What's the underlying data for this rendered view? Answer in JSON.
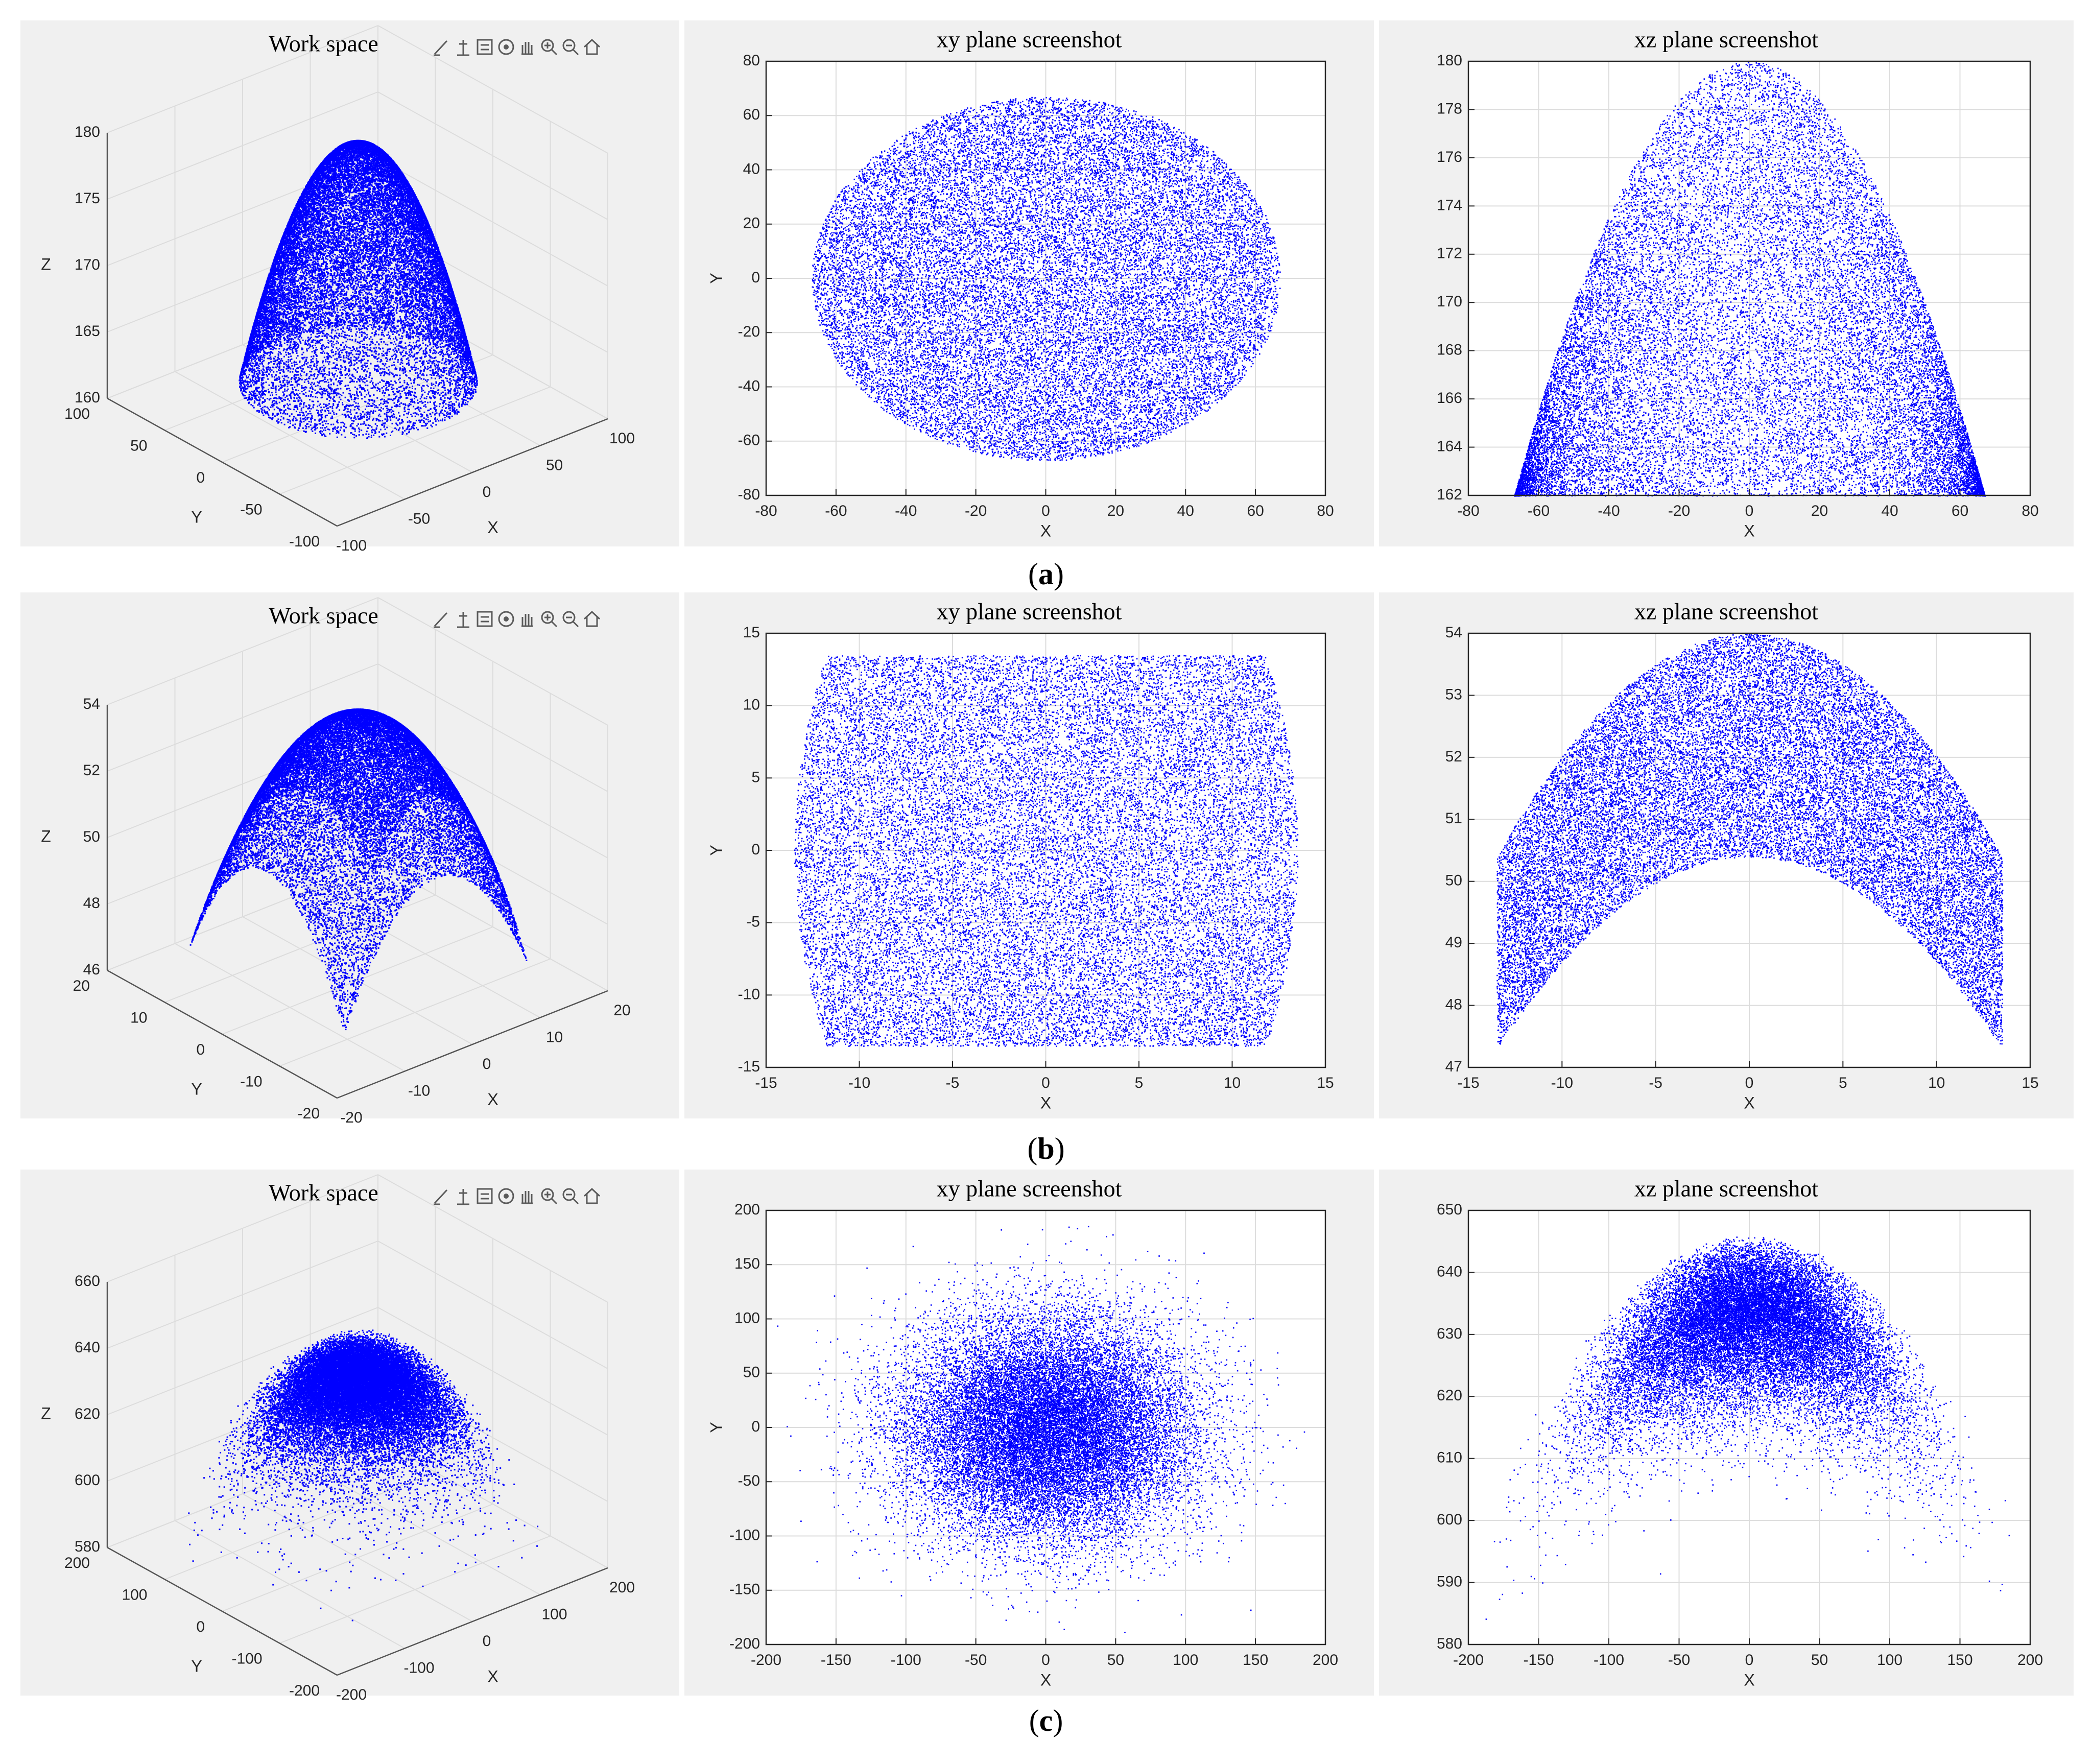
{
  "figure": {
    "rows": [
      {
        "caption_letter": "a",
        "panels": [
          {
            "title": "Work space"
          },
          {
            "title": "xy plane screenshot"
          },
          {
            "title": "xz plane screenshot"
          }
        ]
      },
      {
        "caption_letter": "b",
        "panels": [
          {
            "title": "Work space"
          },
          {
            "title": "xy plane screenshot"
          },
          {
            "title": "xz plane screenshot"
          }
        ]
      },
      {
        "caption_letter": "c",
        "panels": [
          {
            "title": "Work space"
          },
          {
            "title": "xy plane screenshot"
          },
          {
            "title": "xz plane screenshot"
          }
        ]
      }
    ],
    "toolbar_icons": [
      "brush-icon",
      "data-cursor-icon",
      "legend-icon",
      "rotate-icon",
      "pan-hand-icon",
      "zoom-in-icon",
      "zoom-out-icon",
      "home-icon"
    ],
    "colors": {
      "points": "#0000ff",
      "grid": "#dcdcdc",
      "axis": "#262626",
      "figure_bg": "#f0f0f0",
      "axes_bg": "#ffffff"
    }
  },
  "chart_data": [
    {
      "type": "scatter",
      "panel": "a-workspace",
      "title": "Work space",
      "view": "3d",
      "xlabel": "X",
      "ylabel": "Y",
      "zlabel": "Z",
      "xlim": [
        -100,
        100
      ],
      "ylim": [
        -100,
        100
      ],
      "zlim": [
        160,
        180
      ],
      "xticks": [
        -100,
        -50,
        0,
        50,
        100
      ],
      "yticks": [
        -100,
        -50,
        0,
        50,
        100
      ],
      "zticks": [
        160,
        165,
        170,
        175,
        180
      ],
      "shape": "paraboloid cap",
      "z_peak": 180,
      "z_base": 162,
      "base_radius": 67,
      "grid": true
    },
    {
      "type": "scatter",
      "panel": "a-xy",
      "title": "xy plane screenshot",
      "xlabel": "X",
      "ylabel": "Y",
      "xlim": [
        -80,
        80
      ],
      "ylim": [
        -80,
        80
      ],
      "xticks": [
        -80,
        -60,
        -40,
        -20,
        0,
        20,
        40,
        60,
        80
      ],
      "yticks": [
        -80,
        -60,
        -40,
        -20,
        0,
        20,
        40,
        60,
        80
      ],
      "shape": "disk",
      "radius": 67,
      "grid": true
    },
    {
      "type": "scatter",
      "panel": "a-xz",
      "title": "xz plane screenshot",
      "xlabel": "X",
      "ylabel": "",
      "xlim": [
        -80,
        80
      ],
      "ylim": [
        162,
        180
      ],
      "xticks": [
        -80,
        -60,
        -40,
        -20,
        0,
        20,
        40,
        60,
        80
      ],
      "yticks": [
        162,
        164,
        166,
        168,
        170,
        172,
        174,
        176,
        178,
        180
      ],
      "shape": "parabola region",
      "z_peak": 180,
      "z_at_edge": 162,
      "edge_x": 67,
      "grid": true
    },
    {
      "type": "scatter",
      "panel": "b-workspace",
      "title": "Work space",
      "view": "3d",
      "xlabel": "X",
      "ylabel": "Y",
      "zlabel": "Z",
      "xlim": [
        -20,
        20
      ],
      "ylim": [
        -20,
        20
      ],
      "zlim": [
        46,
        54
      ],
      "xticks": [
        -20,
        -10,
        0,
        10,
        20
      ],
      "yticks": [
        -20,
        -10,
        0,
        10,
        20
      ],
      "zticks": [
        46,
        48,
        50,
        52,
        54
      ],
      "shape": "saddle dome",
      "z_peak": 54,
      "grid": true
    },
    {
      "type": "scatter",
      "panel": "b-xy",
      "title": "xy plane screenshot",
      "xlabel": "X",
      "ylabel": "Y",
      "xlim": [
        -15,
        15
      ],
      "ylim": [
        -15,
        15
      ],
      "xticks": [
        -15,
        -10,
        -5,
        0,
        5,
        10,
        15
      ],
      "yticks": [
        -15,
        -10,
        -5,
        0,
        5,
        10,
        15
      ],
      "shape": "barrel rectangle",
      "x_half_width_mid": 13.5,
      "x_half_width_edge": 11.8,
      "y_half_height": 13.5,
      "grid": true
    },
    {
      "type": "scatter",
      "panel": "b-xz",
      "title": "xz plane screenshot",
      "xlabel": "X",
      "ylabel": "",
      "xlim": [
        -15,
        15
      ],
      "ylim": [
        47,
        54
      ],
      "xticks": [
        -15,
        -10,
        -5,
        0,
        5,
        10,
        15
      ],
      "yticks": [
        47,
        48,
        49,
        50,
        51,
        52,
        53,
        54
      ],
      "shape": "crescent band",
      "top_peak": 54,
      "top_edge": 50.4,
      "bottom_peak": 50.4,
      "bottom_edge": 47.3,
      "edge_x": 13.5,
      "grid": true
    },
    {
      "type": "scatter",
      "panel": "c-workspace",
      "title": "Work space",
      "view": "3d",
      "xlabel": "X",
      "ylabel": "Y",
      "zlabel": "Z",
      "xlim": [
        -200,
        200
      ],
      "ylim": [
        -200,
        200
      ],
      "zlim": [
        580,
        660
      ],
      "xticks": [
        -200,
        -100,
        0,
        100,
        200
      ],
      "yticks": [
        -200,
        -100,
        0,
        100,
        200
      ],
      "zticks": [
        580,
        600,
        620,
        640,
        660
      ],
      "shape": "gaussian cloud dome",
      "grid": true
    },
    {
      "type": "scatter",
      "panel": "c-xy",
      "title": "xy plane screenshot",
      "xlabel": "X",
      "ylabel": "Y",
      "xlim": [
        -200,
        200
      ],
      "ylim": [
        -200,
        200
      ],
      "xticks": [
        -200,
        -150,
        -100,
        -50,
        0,
        50,
        100,
        150,
        200
      ],
      "yticks": [
        -200,
        -150,
        -100,
        -50,
        0,
        50,
        100,
        150,
        200
      ],
      "shape": "gaussian cloud",
      "sigma": 50,
      "grid": true
    },
    {
      "type": "scatter",
      "panel": "c-xz",
      "title": "xz plane screenshot",
      "xlabel": "X",
      "ylabel": "",
      "xlim": [
        -200,
        200
      ],
      "ylim": [
        580,
        650
      ],
      "xticks": [
        -200,
        -150,
        -100,
        -50,
        0,
        50,
        100,
        150,
        200
      ],
      "yticks": [
        580,
        590,
        600,
        610,
        620,
        630,
        640,
        650
      ],
      "shape": "gaussian dome",
      "z_peak": 646,
      "grid": true
    }
  ]
}
